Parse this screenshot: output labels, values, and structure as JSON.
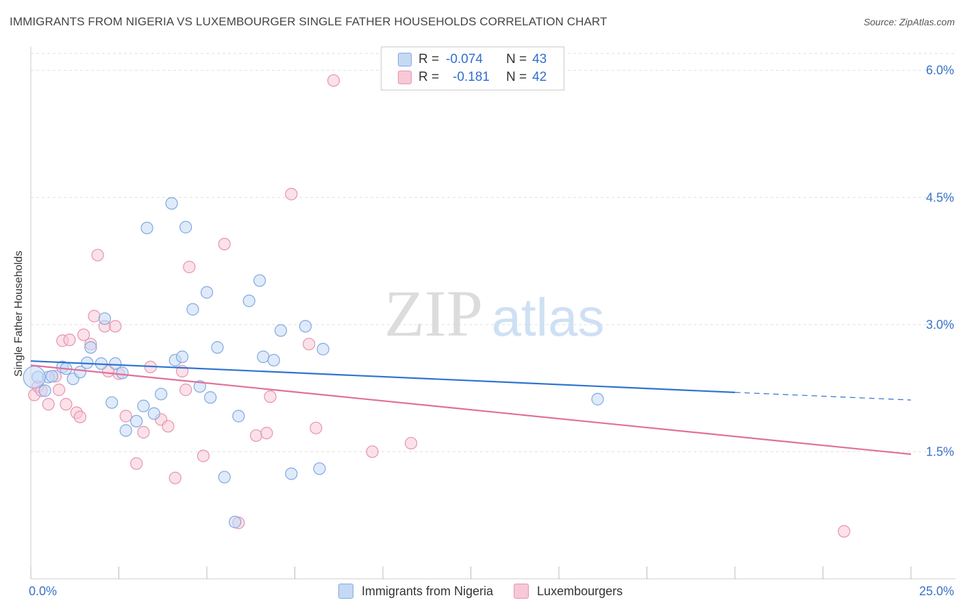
{
  "title": "IMMIGRANTS FROM NIGERIA VS LUXEMBOURGER SINGLE FATHER HOUSEHOLDS CORRELATION CHART",
  "source": "Source: ZipAtlas.com",
  "watermark": {
    "zip": "ZIP",
    "atlas": "atlas"
  },
  "colors": {
    "blue_fill": "#c5d9f5",
    "blue_stroke": "#7fa8e0",
    "blue_line": "#2f73d0",
    "pink_fill": "#f7c8d6",
    "pink_stroke": "#e892ae",
    "pink_line": "#e0709a",
    "axis_text": "#3a72c8",
    "grid": "#dddddd"
  },
  "legend": {
    "rows": [
      {
        "r_label": "R =",
        "r_value": "-0.074",
        "n_label": "N =",
        "n_value": "43",
        "series": "blue"
      },
      {
        "r_label": "R =",
        "r_value": "-0.181",
        "n_label": "N =",
        "n_value": "42",
        "series": "pink"
      }
    ]
  },
  "bottom_legend": [
    "Immigrants from Nigeria",
    "Luxembourgers"
  ],
  "chart_data": {
    "type": "scatter",
    "title": "IMMIGRANTS FROM NIGERIA VS LUXEMBOURGER SINGLE FATHER HOUSEHOLDS CORRELATION CHART",
    "xlabel": "",
    "ylabel": "Single Father Households",
    "xlim": [
      0,
      25
    ],
    "ylim": [
      0,
      6.2
    ],
    "x_tick_labels": [
      "0.0%",
      "25.0%"
    ],
    "y_tick_values": [
      1.5,
      3.0,
      4.5,
      6.0
    ],
    "y_tick_labels": [
      "1.5%",
      "3.0%",
      "4.5%",
      "6.0%"
    ],
    "grid": true,
    "series": [
      {
        "name": "Immigrants from Nigeria",
        "color": "blue",
        "r": -0.074,
        "n": 43,
        "trend": {
          "x0": 0,
          "y0": 2.57,
          "x1": 20,
          "y1": 2.2,
          "dash_to_x": 25,
          "dash_to_y": 2.11
        },
        "points": [
          [
            0.2,
            2.38
          ],
          [
            0.4,
            2.22
          ],
          [
            0.5,
            2.38
          ],
          [
            0.6,
            2.39
          ],
          [
            0.9,
            2.5
          ],
          [
            1.0,
            2.48
          ],
          [
            1.2,
            2.36
          ],
          [
            1.4,
            2.44
          ],
          [
            1.6,
            2.55
          ],
          [
            1.7,
            2.73
          ],
          [
            2.0,
            2.54
          ],
          [
            2.1,
            3.07
          ],
          [
            2.3,
            2.08
          ],
          [
            2.4,
            2.54
          ],
          [
            2.6,
            2.43
          ],
          [
            2.7,
            1.75
          ],
          [
            3.0,
            1.86
          ],
          [
            3.2,
            2.04
          ],
          [
            3.3,
            4.14
          ],
          [
            3.5,
            1.95
          ],
          [
            3.7,
            2.18
          ],
          [
            4.0,
            4.43
          ],
          [
            4.1,
            2.58
          ],
          [
            4.3,
            2.62
          ],
          [
            4.4,
            4.15
          ],
          [
            4.6,
            3.18
          ],
          [
            4.8,
            2.27
          ],
          [
            5.0,
            3.38
          ],
          [
            5.1,
            2.14
          ],
          [
            5.3,
            2.73
          ],
          [
            5.5,
            1.2
          ],
          [
            5.8,
            0.67
          ],
          [
            5.9,
            1.92
          ],
          [
            6.2,
            3.28
          ],
          [
            6.5,
            3.52
          ],
          [
            6.6,
            2.62
          ],
          [
            6.9,
            2.58
          ],
          [
            7.1,
            2.93
          ],
          [
            7.4,
            1.24
          ],
          [
            7.8,
            2.98
          ],
          [
            8.2,
            1.3
          ],
          [
            8.3,
            2.71
          ],
          [
            16.1,
            2.12
          ]
        ]
      },
      {
        "name": "Luxembourgers",
        "color": "pink",
        "r": -0.181,
        "n": 42,
        "trend": {
          "x0": 0,
          "y0": 2.52,
          "x1": 25,
          "y1": 1.47
        },
        "points": [
          [
            0.1,
            2.17
          ],
          [
            0.2,
            2.27
          ],
          [
            0.3,
            2.22
          ],
          [
            0.5,
            2.06
          ],
          [
            0.7,
            2.39
          ],
          [
            0.8,
            2.23
          ],
          [
            0.9,
            2.81
          ],
          [
            1.0,
            2.06
          ],
          [
            1.1,
            2.82
          ],
          [
            1.3,
            1.96
          ],
          [
            1.4,
            1.91
          ],
          [
            1.5,
            2.88
          ],
          [
            1.7,
            2.77
          ],
          [
            1.8,
            3.1
          ],
          [
            1.9,
            3.82
          ],
          [
            2.1,
            2.98
          ],
          [
            2.2,
            2.45
          ],
          [
            2.4,
            2.98
          ],
          [
            2.5,
            2.42
          ],
          [
            2.7,
            1.92
          ],
          [
            3.0,
            1.36
          ],
          [
            3.2,
            1.73
          ],
          [
            3.4,
            2.5
          ],
          [
            3.7,
            1.88
          ],
          [
            3.9,
            1.8
          ],
          [
            4.1,
            1.19
          ],
          [
            4.3,
            2.45
          ],
          [
            4.4,
            2.23
          ],
          [
            4.5,
            3.68
          ],
          [
            4.9,
            1.45
          ],
          [
            5.5,
            3.95
          ],
          [
            5.9,
            0.66
          ],
          [
            6.4,
            1.69
          ],
          [
            6.7,
            1.72
          ],
          [
            6.8,
            2.15
          ],
          [
            7.4,
            4.54
          ],
          [
            7.9,
            2.77
          ],
          [
            8.1,
            1.78
          ],
          [
            8.6,
            5.88
          ],
          [
            9.7,
            1.5
          ],
          [
            10.8,
            1.6
          ],
          [
            23.1,
            0.56
          ]
        ]
      }
    ]
  }
}
